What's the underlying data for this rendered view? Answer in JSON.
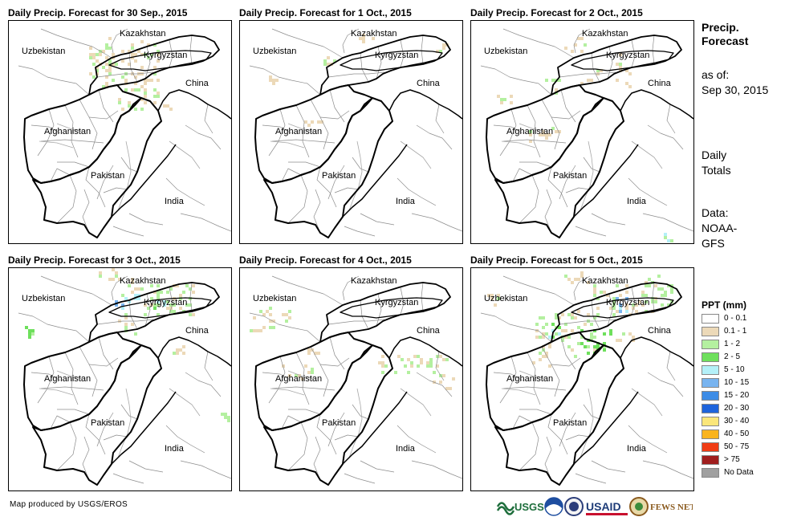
{
  "panels": [
    {
      "title": "Daily Precip. Forecast for 30 Sep., 2015"
    },
    {
      "title": "Daily Precip. Forecast for 1 Oct., 2015"
    },
    {
      "title": "Daily Precip. Forecast for 2 Oct., 2015"
    },
    {
      "title": "Daily Precip. Forecast for 3 Oct., 2015"
    },
    {
      "title": "Daily Precip. Forecast for 4 Oct., 2015"
    },
    {
      "title": "Daily Precip. Forecast for 5 Oct., 2015"
    }
  ],
  "country_labels": {
    "kazakhstan": "Kazakhstan",
    "uzbekistan": "Uzbekistan",
    "kyrgyzstan": "Kyrgyzstan",
    "china": "China",
    "afghanistan": "Afghanistan",
    "pakistan": "Pakistan",
    "india": "India"
  },
  "sidebar": {
    "title_line1": "Precip.",
    "title_line2": "Forecast",
    "asof_label": "as of:",
    "asof_date": "Sep 30, 2015",
    "totals_line1": "Daily",
    "totals_line2": "Totals",
    "data_line1": "Data:",
    "data_line2": "NOAA-",
    "data_line3": "GFS"
  },
  "legend": {
    "title": "PPT (mm)",
    "items": [
      {
        "label": "0 - 0.1",
        "color": "#ffffff"
      },
      {
        "label": "0.1 - 1",
        "color": "#ecd9b8"
      },
      {
        "label": "1 - 2",
        "color": "#b4f0a0"
      },
      {
        "label": "2 - 5",
        "color": "#6ee05c"
      },
      {
        "label": "5 - 10",
        "color": "#b4f0f8"
      },
      {
        "label": "10 - 15",
        "color": "#78b4f0"
      },
      {
        "label": "15 - 20",
        "color": "#3c8ce6"
      },
      {
        "label": "20 - 30",
        "color": "#1e64dc"
      },
      {
        "label": "30 - 40",
        "color": "#fae67a"
      },
      {
        "label": "40 - 50",
        "color": "#fab41e"
      },
      {
        "label": "50 - 75",
        "color": "#f03c14"
      },
      {
        "label": "> 75",
        "color": "#a01e1e"
      },
      {
        "label": "No Data",
        "color": "#a0a0a0"
      }
    ]
  },
  "footer": {
    "credit": "Map produced by USGS/EROS",
    "logo_usgs": "USGS",
    "logo_usaid": "USAID",
    "logo_fewsnet": "FEWS NET"
  }
}
